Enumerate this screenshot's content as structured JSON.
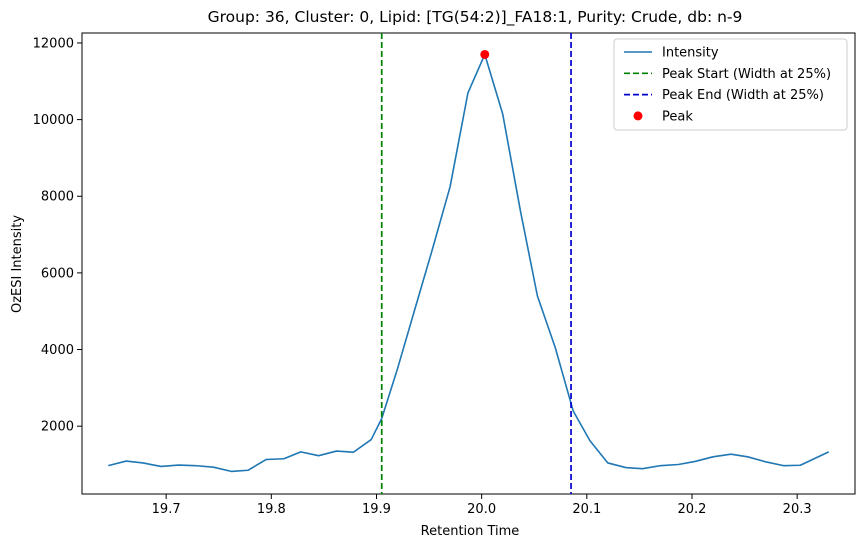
{
  "chart_data": {
    "type": "line",
    "title": "Group: 36, Cluster: 0, Lipid: [TG(54:2)]_FA18:1, Purity: Crude, db: n-9",
    "xlabel": "Retention Time",
    "ylabel": "OzESI Intensity",
    "xlim": [
      19.62,
      20.355
    ],
    "ylim": [
      230,
      12260
    ],
    "xticks": [
      19.7,
      19.8,
      19.9,
      20.0,
      20.1,
      20.2,
      20.3
    ],
    "xtick_labels": [
      "19.7",
      "19.8",
      "19.9",
      "20.0",
      "20.1",
      "20.2",
      "20.3"
    ],
    "yticks": [
      2000,
      4000,
      6000,
      8000,
      10000,
      12000
    ],
    "ytick_labels": [
      "2000",
      "4000",
      "6000",
      "8000",
      "10000",
      "12000"
    ],
    "grid": false,
    "legend_position": "top-right",
    "series": [
      {
        "name": "Intensity",
        "color": "#1f77b4",
        "style": "solid",
        "x": [
          19.645,
          19.662,
          19.678,
          19.695,
          19.712,
          19.728,
          19.745,
          19.762,
          19.778,
          19.795,
          19.812,
          19.828,
          19.845,
          19.862,
          19.878,
          19.895,
          19.905,
          19.92,
          19.937,
          19.953,
          19.97,
          19.987,
          20.003,
          20.02,
          20.037,
          20.053,
          20.07,
          20.087,
          20.103,
          20.12,
          20.137,
          20.153,
          20.17,
          20.187,
          20.203,
          20.22,
          20.237,
          20.253,
          20.27,
          20.287,
          20.303,
          20.33
        ],
        "values": [
          970,
          1090,
          1040,
          950,
          985,
          970,
          930,
          820,
          850,
          1130,
          1150,
          1330,
          1230,
          1350,
          1320,
          1650,
          2200,
          3500,
          5100,
          6600,
          8250,
          10700,
          11700,
          10150,
          7600,
          5400,
          4050,
          2400,
          1620,
          1040,
          920,
          890,
          970,
          1000,
          1080,
          1200,
          1270,
          1200,
          1070,
          970,
          980,
          1330
        ]
      },
      {
        "name": "Peak Start (Width at 25%)",
        "color": "#008000",
        "style": "dashed",
        "vline_x": 19.905
      },
      {
        "name": "Peak End (Width at 25%)",
        "color": "#0000cc",
        "style": "dashed",
        "vline_x": 20.085
      },
      {
        "name": "Peak",
        "color": "#ff0000",
        "style": "marker",
        "x": [
          20.003
        ],
        "values": [
          11700
        ]
      }
    ]
  }
}
